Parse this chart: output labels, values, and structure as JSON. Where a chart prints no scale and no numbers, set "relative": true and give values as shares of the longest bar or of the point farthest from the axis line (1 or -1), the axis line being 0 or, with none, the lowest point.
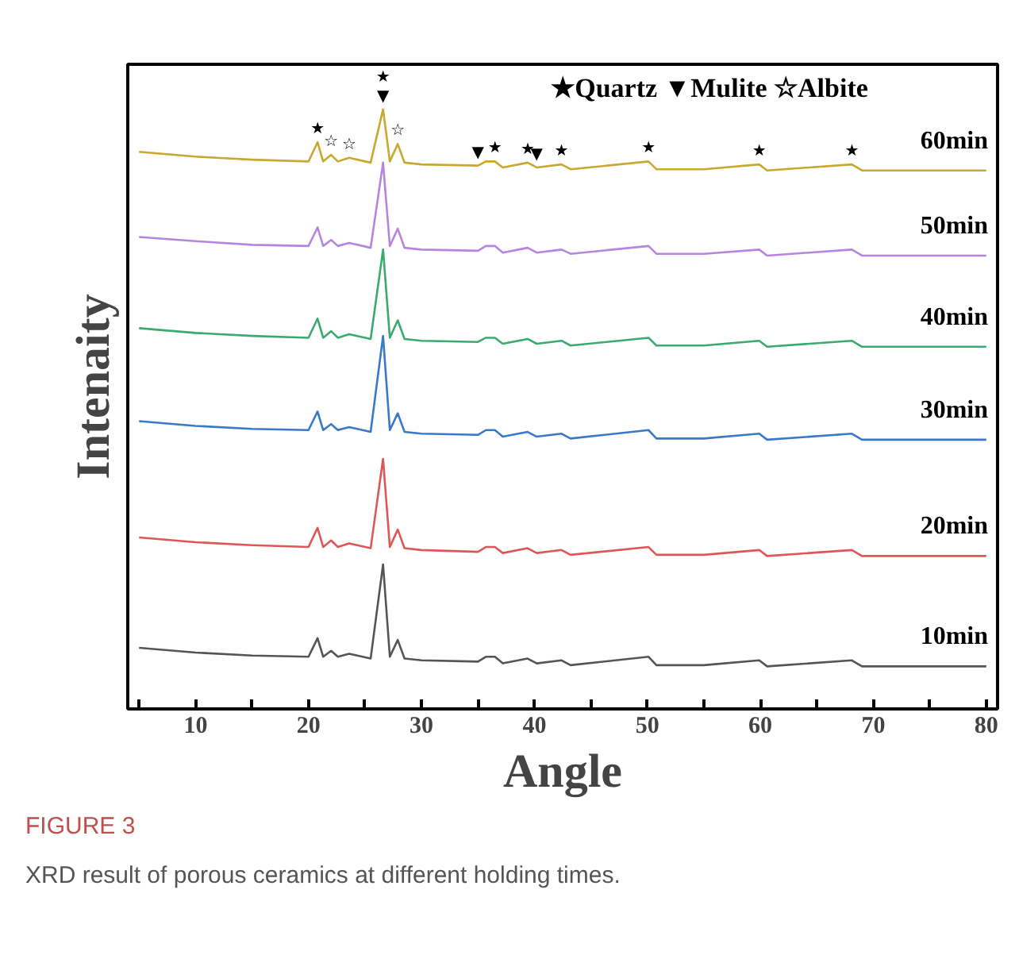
{
  "chart_data": {
    "type": "line",
    "relative": true,
    "xlabel": "Angle",
    "ylabel": "Intenaity",
    "legend": false,
    "grid": false,
    "marker": "none",
    "line_style": "solid",
    "xlim": [
      4,
      81
    ],
    "xticks": [
      {
        "value": 5,
        "label": null
      },
      10,
      {
        "value": 15,
        "label": null
      },
      20,
      {
        "value": 25,
        "label": null
      },
      30,
      {
        "value": 35,
        "label": null
      },
      40,
      {
        "value": 45,
        "label": null
      },
      50,
      {
        "value": 55,
        "label": null
      },
      60,
      {
        "value": 65,
        "label": null
      },
      70,
      {
        "value": 75,
        "label": null
      },
      80
    ],
    "x": [
      5,
      10,
      15,
      20,
      20.8,
      21.3,
      22,
      22.6,
      23.6,
      25.5,
      26.6,
      27.2,
      27.9,
      28.5,
      30,
      35,
      35.7,
      36.5,
      37.2,
      39.4,
      40.2,
      42.4,
      43.2,
      50.1,
      50.8,
      55,
      59.9,
      60.6,
      68.1,
      69,
      80
    ],
    "series": [
      {
        "name": "10min",
        "color": "#555555",
        "values": [
          0.102,
          0.094,
          0.089,
          0.087,
          0.118,
          0.087,
          0.097,
          0.087,
          0.092,
          0.084,
          0.241,
          0.087,
          0.115,
          0.084,
          0.081,
          0.079,
          0.087,
          0.087,
          0.076,
          0.084,
          0.076,
          0.081,
          0.073,
          0.087,
          0.073,
          0.073,
          0.081,
          0.071,
          0.081,
          0.071,
          0.071
        ]
      },
      {
        "name": "20min",
        "color": "#e05555",
        "values": [
          0.286,
          0.278,
          0.273,
          0.27,
          0.302,
          0.27,
          0.281,
          0.27,
          0.276,
          0.268,
          0.417,
          0.27,
          0.299,
          0.268,
          0.265,
          0.262,
          0.27,
          0.27,
          0.26,
          0.268,
          0.26,
          0.265,
          0.257,
          0.27,
          0.257,
          0.257,
          0.265,
          0.255,
          0.265,
          0.255,
          0.255
        ]
      },
      {
        "name": "30min",
        "color": "#3a78c8",
        "values": [
          0.48,
          0.472,
          0.467,
          0.465,
          0.496,
          0.465,
          0.475,
          0.465,
          0.47,
          0.462,
          0.622,
          0.465,
          0.493,
          0.462,
          0.459,
          0.457,
          0.465,
          0.465,
          0.454,
          0.462,
          0.454,
          0.459,
          0.451,
          0.465,
          0.451,
          0.451,
          0.459,
          0.449,
          0.459,
          0.449,
          0.449
        ]
      },
      {
        "name": "40min",
        "color": "#3aaa70",
        "values": [
          0.635,
          0.627,
          0.622,
          0.619,
          0.651,
          0.619,
          0.63,
          0.619,
          0.625,
          0.617,
          0.766,
          0.619,
          0.648,
          0.617,
          0.614,
          0.612,
          0.619,
          0.619,
          0.609,
          0.617,
          0.609,
          0.614,
          0.606,
          0.619,
          0.606,
          0.606,
          0.614,
          0.604,
          0.614,
          0.604,
          0.604
        ]
      },
      {
        "name": "50min",
        "color": "#b585e0",
        "values": [
          0.787,
          0.78,
          0.774,
          0.772,
          0.803,
          0.772,
          0.782,
          0.772,
          0.777,
          0.769,
          0.911,
          0.772,
          0.801,
          0.769,
          0.766,
          0.764,
          0.772,
          0.772,
          0.761,
          0.769,
          0.761,
          0.766,
          0.759,
          0.772,
          0.759,
          0.759,
          0.766,
          0.756,
          0.766,
          0.756,
          0.756
        ]
      },
      {
        "name": "60min",
        "color": "#c8a830",
        "values": [
          0.929,
          0.921,
          0.916,
          0.913,
          0.945,
          0.913,
          0.924,
          0.913,
          0.919,
          0.911,
          1,
          0.913,
          0.942,
          0.911,
          0.908,
          0.906,
          0.913,
          0.913,
          0.903,
          0.911,
          0.903,
          0.908,
          0.9,
          0.913,
          0.9,
          0.9,
          0.908,
          0.898,
          0.908,
          0.898,
          0.898
        ]
      }
    ],
    "annotations": [
      "★Quartz ▼Mulite ☆Albite",
      {
        "text": "★",
        "x": 20.8,
        "y": 0.945
      },
      {
        "text": "☆",
        "x": 22,
        "y": 0.924
      },
      {
        "text": "☆",
        "x": 23.6,
        "y": 0.919
      },
      {
        "text": "▼",
        "x": 26.6,
        "y": 1
      },
      {
        "text": "★",
        "x": 26.6,
        "y": 1
      },
      {
        "text": "☆",
        "x": 27.9,
        "y": 0.942
      },
      {
        "text": "▼",
        "x": 35,
        "y": 0.906
      },
      {
        "text": "★",
        "x": 36.5,
        "y": 0.913
      },
      {
        "text": "★",
        "x": 39.4,
        "y": 0.911
      },
      {
        "text": "▼",
        "x": 40.2,
        "y": 0.903
      },
      {
        "text": "★",
        "x": 42.4,
        "y": 0.908
      },
      {
        "text": "★",
        "x": 50.1,
        "y": 0.913
      },
      {
        "text": "★",
        "x": 59.9,
        "y": 0.908
      },
      {
        "text": "★",
        "x": 68.1,
        "y": 0.908
      },
      "FIGURE 3",
      "XRD result of porous ceramics at different holding times."
    ]
  }
}
